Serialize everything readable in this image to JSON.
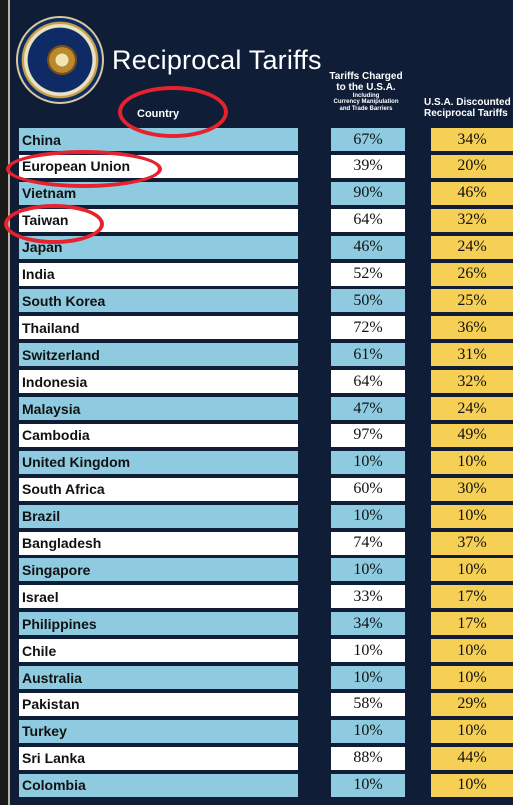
{
  "title": "Reciprocal Tariffs",
  "seal_text": "SEAL OF THE PRESIDENT OF THE UNITED STATES",
  "headers": {
    "country": "Country",
    "charged_line1": "Tariffs Charged",
    "charged_line2": "to the U.S.A.",
    "charged_small1": "Including",
    "charged_small2": "Currency Manipulation",
    "charged_small3": "and Trade Barriers",
    "discounted_line1": "U.S.A. Discounted",
    "discounted_line2": "Reciprocal Tariffs"
  },
  "colors": {
    "board": "#0f1d36",
    "row_blue": "#8ecbe0",
    "row_white": "#ffffff",
    "discount_yellow": "#f6cf55",
    "annotation_red": "#e5222e"
  },
  "rows": [
    {
      "country": "China",
      "charged": "67%",
      "discounted": "34%"
    },
    {
      "country": "European Union",
      "charged": "39%",
      "discounted": "20%"
    },
    {
      "country": "Vietnam",
      "charged": "90%",
      "discounted": "46%"
    },
    {
      "country": "Taiwan",
      "charged": "64%",
      "discounted": "32%"
    },
    {
      "country": "Japan",
      "charged": "46%",
      "discounted": "24%"
    },
    {
      "country": "India",
      "charged": "52%",
      "discounted": "26%"
    },
    {
      "country": "South Korea",
      "charged": "50%",
      "discounted": "25%"
    },
    {
      "country": "Thailand",
      "charged": "72%",
      "discounted": "36%"
    },
    {
      "country": "Switzerland",
      "charged": "61%",
      "discounted": "31%"
    },
    {
      "country": "Indonesia",
      "charged": "64%",
      "discounted": "32%"
    },
    {
      "country": "Malaysia",
      "charged": "47%",
      "discounted": "24%"
    },
    {
      "country": "Cambodia",
      "charged": "97%",
      "discounted": "49%"
    },
    {
      "country": "United Kingdom",
      "charged": "10%",
      "discounted": "10%"
    },
    {
      "country": "South Africa",
      "charged": "60%",
      "discounted": "30%"
    },
    {
      "country": "Brazil",
      "charged": "10%",
      "discounted": "10%"
    },
    {
      "country": "Bangladesh",
      "charged": "74%",
      "discounted": "37%"
    },
    {
      "country": "Singapore",
      "charged": "10%",
      "discounted": "10%"
    },
    {
      "country": "Israel",
      "charged": "33%",
      "discounted": "17%"
    },
    {
      "country": "Philippines",
      "charged": "34%",
      "discounted": "17%"
    },
    {
      "country": "Chile",
      "charged": "10%",
      "discounted": "10%"
    },
    {
      "country": "Australia",
      "charged": "10%",
      "discounted": "10%"
    },
    {
      "country": "Pakistan",
      "charged": "58%",
      "discounted": "29%"
    },
    {
      "country": "Turkey",
      "charged": "10%",
      "discounted": "10%"
    },
    {
      "country": "Sri Lanka",
      "charged": "88%",
      "discounted": "44%"
    },
    {
      "country": "Colombia",
      "charged": "10%",
      "discounted": "10%"
    }
  ]
}
